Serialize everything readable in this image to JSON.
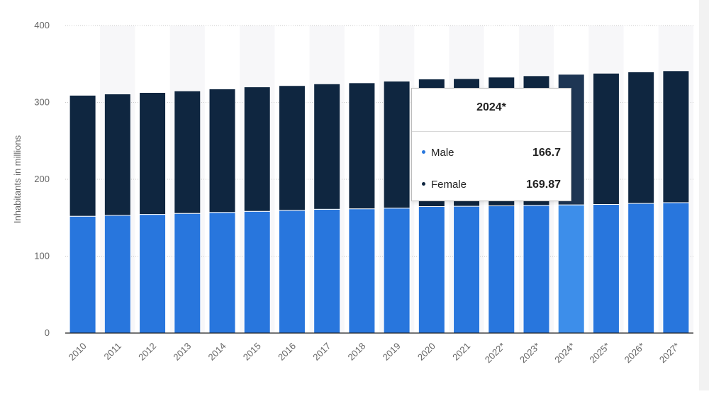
{
  "chart_data": {
    "type": "bar",
    "stacked": true,
    "categories": [
      "2010",
      "2011",
      "2012",
      "2013",
      "2014",
      "2015",
      "2016",
      "2017",
      "2018",
      "2019",
      "2020",
      "2021",
      "2022*",
      "2023*",
      "2024*",
      "2025*",
      "2026*",
      "2027*"
    ],
    "series": [
      {
        "name": "Male",
        "color": "#2876dd",
        "values": [
          151.9,
          153.0,
          154.3,
          155.6,
          156.9,
          158.3,
          159.6,
          161.0,
          161.6,
          162.5,
          164.5,
          164.9,
          165.5,
          166.1,
          166.7,
          167.3,
          168.6,
          169.6
        ]
      },
      {
        "name": "Female",
        "color": "#0f2640",
        "values": [
          157.4,
          158.0,
          158.6,
          159.4,
          160.7,
          161.9,
          162.3,
          163.2,
          163.9,
          165.2,
          166.0,
          166.1,
          167.4,
          168.6,
          169.87,
          170.7,
          171.1,
          171.6
        ]
      }
    ],
    "ylabel": "Inhabitants in millions",
    "xlabel": "",
    "title": "",
    "ylim": [
      0,
      400
    ],
    "yticks": [
      "0",
      "100",
      "200",
      "300",
      "400"
    ],
    "grid": true,
    "highlighted_category": "2024*",
    "highlight_color": "#3d8eea"
  },
  "tooltip": {
    "title": "2024*",
    "rows": [
      {
        "label": "Male",
        "value": "166.7",
        "color": "#2876dd"
      },
      {
        "label": "Female",
        "value": "169.87",
        "color": "#0f2640"
      }
    ]
  }
}
